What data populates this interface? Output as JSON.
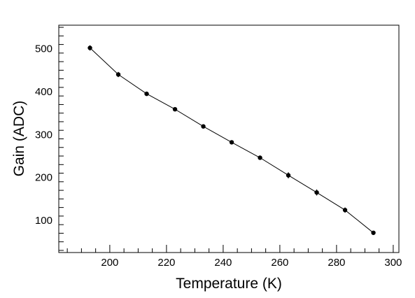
{
  "chart_data": {
    "type": "scatter",
    "title": "",
    "xlabel": "Temperature (K)",
    "ylabel": "Gain (ADC)",
    "xlim": [
      182,
      302
    ],
    "ylim": [
      25,
      555
    ],
    "xticks": [
      200,
      220,
      240,
      260,
      280,
      300
    ],
    "yticks": [
      100,
      200,
      300,
      400,
      500
    ],
    "grid": false,
    "legend": "none",
    "series": [
      {
        "marker": "filled-circle",
        "line": "solid",
        "color": "#000000",
        "x": [
          193,
          203,
          213,
          223,
          233,
          243,
          253,
          263,
          273,
          283,
          293
        ],
        "y": [
          502,
          440,
          395,
          359,
          319,
          282,
          246,
          205,
          165,
          124,
          71
        ],
        "yerr": [
          6,
          6,
          4,
          3,
          3,
          3,
          3,
          7,
          7,
          6,
          3
        ]
      }
    ]
  }
}
